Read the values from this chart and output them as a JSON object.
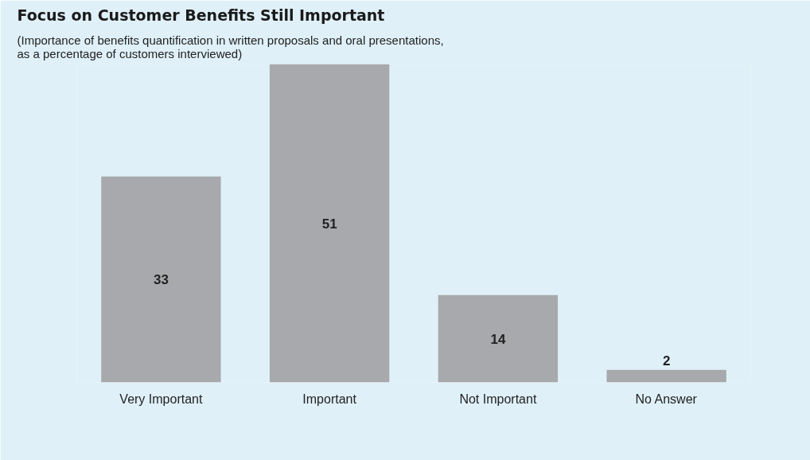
{
  "chart_data": {
    "type": "bar",
    "title": "Focus on Customer Benefits Still Important",
    "subtitle": "(Importance of benefits quantification in written proposals and oral presentations, as a percentage of customers interviewed)",
    "categories": [
      "Very Important",
      "Important",
      "Not Important",
      "No Answer"
    ],
    "values": [
      33,
      51,
      14,
      2
    ],
    "color": "#a7a9ac",
    "data_labels": true,
    "grid": false
  }
}
